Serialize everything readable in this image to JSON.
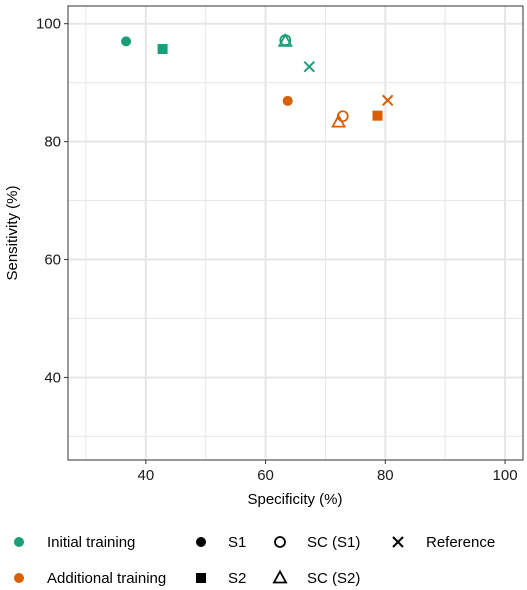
{
  "chart_data": {
    "type": "scatter",
    "title": "",
    "xlabel": "Specificity (%)",
    "ylabel": "Sensitivity (%)",
    "xlim": [
      27,
      103
    ],
    "ylim": [
      26,
      103
    ],
    "xticks": [
      40,
      60,
      80,
      100
    ],
    "yticks": [
      40,
      60,
      80,
      100
    ],
    "grid": true,
    "legend_position": "bottom",
    "groups": [
      {
        "name": "Initial training",
        "color": "#1b9e77"
      },
      {
        "name": "Additional training",
        "color": "#d95f02"
      }
    ],
    "marker_types": [
      {
        "name": "S1",
        "shape": "filled-circle"
      },
      {
        "name": "S2",
        "shape": "filled-square"
      },
      {
        "name": "SC (S1)",
        "shape": "open-circle"
      },
      {
        "name": "SC (S2)",
        "shape": "open-triangle"
      },
      {
        "name": "Reference",
        "shape": "cross"
      }
    ],
    "points": [
      {
        "group": "Initial training",
        "type": "S1",
        "x": 36.7,
        "y": 97.0
      },
      {
        "group": "Initial training",
        "type": "S2",
        "x": 42.8,
        "y": 95.7
      },
      {
        "group": "Initial training",
        "type": "SC (S1)",
        "x": 63.3,
        "y": 97.2
      },
      {
        "group": "Initial training",
        "type": "SC (S2)",
        "x": 63.3,
        "y": 97.0
      },
      {
        "group": "Initial training",
        "type": "Reference",
        "x": 67.3,
        "y": 92.7
      },
      {
        "group": "Additional training",
        "type": "S1",
        "x": 63.7,
        "y": 86.9
      },
      {
        "group": "Additional training",
        "type": "S2",
        "x": 78.7,
        "y": 84.4
      },
      {
        "group": "Additional training",
        "type": "SC (S1)",
        "x": 72.9,
        "y": 84.3
      },
      {
        "group": "Additional training",
        "type": "SC (S2)",
        "x": 72.2,
        "y": 83.3
      },
      {
        "group": "Additional training",
        "type": "Reference",
        "x": 80.4,
        "y": 87.0
      }
    ]
  }
}
